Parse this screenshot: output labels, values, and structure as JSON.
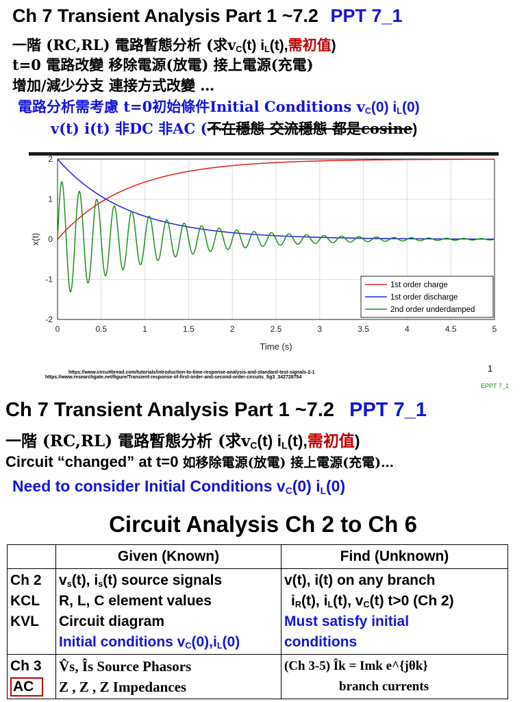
{
  "slide1": {
    "title_left": "Ch 7  Transient Analysis  Part 1 ~7.2",
    "title_right": "PPT 7_1",
    "line1_a": "一階 (RC,RL) 電路暫態分析 (求v",
    "line1_sub1": "C",
    "line1_b": "(t) i",
    "line1_sub2": "L",
    "line1_c": "(t),",
    "line1_red": "需初值",
    "line1_d": ")",
    "line2": "t=0 電路改變  移除電源(放電) 接上電源(充電)",
    "line3": "增加/減少分支 連接方式改變 …",
    "line4_a": "電路分析需考慮 t=0初始條件Initial Conditions v",
    "line4_sub1": "C",
    "line4_b": "(0) i",
    "line4_sub2": "L",
    "line4_c": "(0)",
    "line5_a": "v(t)  i(t) 非DC  非AC  (",
    "line5_strike": "不在穩態 交流穩態 都是cosine",
    "line5_b": ")",
    "cite1": "https://www.circuitbread.com/tutorials/introduction-to-time-response-analysis-and-standard-test-signals-2-1",
    "cite2": "https://www.researchgate.net/figure/Transient-response-of-first-order-and-second-order-circuits_fig3_342728754",
    "page_number": "1",
    "footer": "EPPT 7_1"
  },
  "chart_data": {
    "type": "line",
    "xlabel": "Time (s)",
    "ylabel": "x(t)",
    "xlim": [
      0,
      5
    ],
    "ylim": [
      -2,
      2
    ],
    "xticks": [
      "0",
      "0.5",
      "1",
      "1.5",
      "2",
      "2.5",
      "3",
      "3.5",
      "4",
      "4.5",
      "5"
    ],
    "yticks": [
      "2",
      "1",
      "0",
      "-1",
      "-2"
    ],
    "grid": true,
    "legend_position": "bottom-right",
    "series": [
      {
        "name": "1st order charge",
        "color": "#e8191c",
        "formula": "2*(1-exp(-t/0.8))"
      },
      {
        "name": "1st order discharge",
        "color": "#1f1fe6",
        "formula": "2*exp(-t/0.8)"
      },
      {
        "name": "2nd order underdamped",
        "color": "#1c8f1c",
        "formula": "1.5*exp(-t/1.1)*sin(2*pi*5*t)"
      }
    ]
  },
  "slide2": {
    "title_left": "Ch 7  Transient Analysis  Part 1 ~7.2",
    "title_right": "PPT 7_1",
    "line1_a": "一階 (RC,RL) 電路暫態分析 (求v",
    "line1_sub1": "C",
    "line1_b": "(t) i",
    "line1_sub2": "L",
    "line1_c": "(t),",
    "line1_red": "需初值",
    "line1_d": ")",
    "line2_a": "Circuit “changed” at t=0 ",
    "line2_b": "如移除電源(放電) 接上電源(充電)…",
    "line3_a": "Need to consider Initial Conditions v",
    "line3_sub1": "C",
    "line3_b": "(0) i",
    "line3_sub2": "L",
    "line3_c": "(0)",
    "table_title": "Circuit Analysis  Ch 2 to Ch 6",
    "head_given": "Given  (Known)",
    "head_find": "Find (Unknown)",
    "row1_ch": [
      "Ch 2",
      "KCL",
      "KVL"
    ],
    "row1_given_1a": "v",
    "row1_given_1b": "s",
    "row1_given_1c": "(t), i",
    "row1_given_1d": "s",
    "row1_given_1e": "(t) source signals",
    "row1_given_2": "R, L, C    element values",
    "row1_given_3": "Circuit diagram",
    "row1_given_4a": "Initial conditions v",
    "row1_given_4b": "C",
    "row1_given_4c": "(0),i",
    "row1_given_4d": "L",
    "row1_given_4e": "(0)",
    "row1_find_1": "v(t), i(t) on any branch",
    "row1_find_2a": "i",
    "row1_find_2b": "R",
    "row1_find_2c": "(t), i",
    "row1_find_2d": "L",
    "row1_find_2e": "(t), v",
    "row1_find_2f": "C",
    "row1_find_2g": "(t) t>0  (Ch 2)",
    "row1_find_3": "Must satisfy initial",
    "row1_find_4": "conditions",
    "row2_ch": [
      "Ch 3",
      "AC"
    ],
    "row2_given_1": "V̂s, Îs   Source Phasors",
    "row2_given_2": "Z , Z , Z   Impedances",
    "row2_find_1": "(Ch 3-5)  Îk = Imk e^{jθk}",
    "row2_find_2": "branch currents"
  }
}
